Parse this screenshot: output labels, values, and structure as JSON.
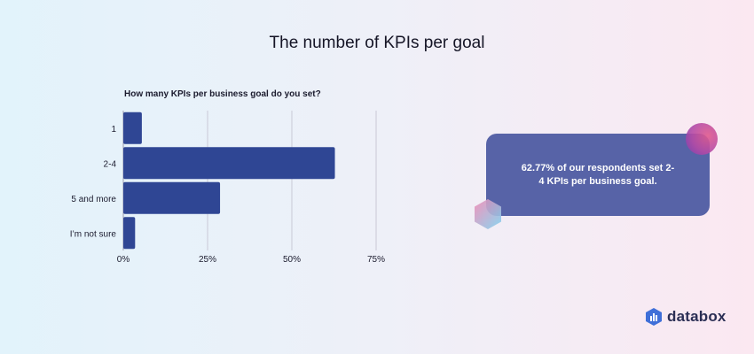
{
  "page": {
    "title": "The number of KPIs per goal"
  },
  "chart_data": {
    "type": "bar",
    "orientation": "horizontal",
    "title": "How many KPIs per business goal do you set?",
    "categories": [
      "1",
      "2-4",
      "5 and more",
      "I’m not sure"
    ],
    "values": [
      5.5,
      62.77,
      28.7,
      3.5
    ],
    "value_unit": "%",
    "xlim": [
      0,
      75
    ],
    "x_ticks": [
      0,
      25,
      50,
      75
    ],
    "x_tick_labels": [
      "0%",
      "25%",
      "50%",
      "75%"
    ],
    "bar_color": "#2f4694",
    "grid": "vertical"
  },
  "callout": {
    "text": "62.77% of our respondents set 2-4 KPIs per business goal."
  },
  "brand": {
    "name": "databox",
    "colors": {
      "callout": "#5763a7",
      "accent_pink": "#e05a8e",
      "accent_blue": "#7fd3f0"
    }
  }
}
